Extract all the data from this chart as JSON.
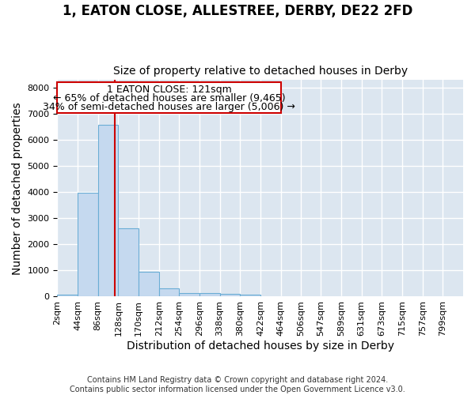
{
  "title": "1, EATON CLOSE, ALLESTREE, DERBY, DE22 2FD",
  "subtitle": "Size of property relative to detached houses in Derby",
  "xlabel": "Distribution of detached houses by size in Derby",
  "ylabel": "Number of detached properties",
  "footnote1": "Contains HM Land Registry data © Crown copyright and database right 2024.",
  "footnote2": "Contains public sector information licensed under the Open Government Licence v3.0.",
  "annotation_line1": "1 EATON CLOSE: 121sqm",
  "annotation_line2": "← 65% of detached houses are smaller (9,465)",
  "annotation_line3": "34% of semi-detached houses are larger (5,006) →",
  "bar_edges": [
    2,
    44,
    86,
    128,
    170,
    212,
    254,
    296,
    338,
    380,
    422,
    464,
    506,
    547,
    589,
    631,
    673,
    715,
    757,
    799,
    841
  ],
  "bar_heights": [
    75,
    3980,
    6580,
    2620,
    960,
    310,
    130,
    120,
    100,
    75,
    0,
    0,
    0,
    0,
    0,
    0,
    0,
    0,
    0,
    0
  ],
  "bar_color": "#c5d9ef",
  "bar_edgecolor": "#6aadd5",
  "vline_x": 121,
  "vline_color": "#cc0000",
  "ylim": [
    0,
    8300
  ],
  "yticks": [
    0,
    1000,
    2000,
    3000,
    4000,
    5000,
    6000,
    7000,
    8000
  ],
  "bg_color": "#dce6f0",
  "grid_color": "#ffffff",
  "annotation_box_edgecolor": "#cc0000",
  "title_fontsize": 12,
  "subtitle_fontsize": 10,
  "axis_label_fontsize": 10,
  "tick_fontsize": 8,
  "annotation_fontsize": 9
}
